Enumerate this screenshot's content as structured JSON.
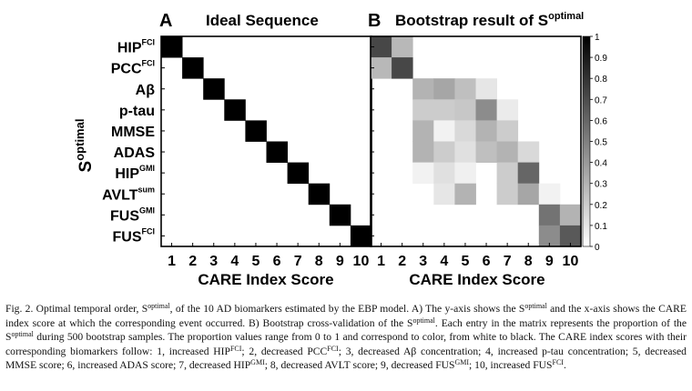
{
  "panels": [
    {
      "letter": "A",
      "title": "Ideal Sequence",
      "xlabel": "CARE Index Score",
      "ylabel_main": "S",
      "ylabel_sup": "optimal"
    },
    {
      "letter": "B",
      "title_main": "Bootstrap result of S",
      "title_sup": "optimal",
      "xlabel": "CARE Index Score"
    }
  ],
  "row_labels": [
    {
      "main": "HIP",
      "sup": "FCI"
    },
    {
      "main": "PCC",
      "sup": "FCI"
    },
    {
      "main": "Aβ",
      "sup": ""
    },
    {
      "main": "p-tau",
      "sup": ""
    },
    {
      "main": "MMSE",
      "sup": ""
    },
    {
      "main": "ADAS",
      "sup": ""
    },
    {
      "main": "HIP",
      "sup": "GMI"
    },
    {
      "main": "AVLT",
      "sup": "sum"
    },
    {
      "main": "FUS",
      "sup": "GMI"
    },
    {
      "main": "FUS",
      "sup": "FCI"
    }
  ],
  "caption": {
    "p1": "Fig. 2. Optimal temporal order, S",
    "s1": "optimal",
    "p2": ", of the 10 AD biomarkers estimated by the EBP model. A) The y-axis shows the S",
    "s2": "optimal",
    "p3": " and the x-axis shows the CARE index score at which the corresponding event occurred. B) Bootstrap cross-validation of the S",
    "s3": "optimal",
    "p4": ". Each entry in the matrix represents the proportion of the S",
    "s4": "optimal",
    "p5": " during 500 bootstrap samples. The proportion values range from 0 to 1 and correspond to color, from white to black. The CARE index scores with their corresponding biomarkers follow: 1, increased HIP",
    "s5": "FCI",
    "p6": "; 2, decreased PCC",
    "s6": "FCI",
    "p7": "; 3, decreased Aβ concentration; 4, increased p-tau concentration; 5, decreased MMSE score; 6, increased ADAS score; 7, decreased HIP",
    "s7": "GMI",
    "p8": "; 8, decreased AVLT score; 9, decreased FUS",
    "s8": "GMI",
    "p9": "; 10, increased FUS",
    "s9": "FCI",
    "p10": "."
  },
  "chart_data": [
    {
      "type": "heatmap",
      "panel": "A",
      "title": "Ideal Sequence",
      "xlabel": "CARE Index Score",
      "ylabel": "Soptimal",
      "x": [
        1,
        2,
        3,
        4,
        5,
        6,
        7,
        8,
        9,
        10
      ],
      "y": [
        "HIP FCI",
        "PCC FCI",
        "Aβ",
        "p-tau",
        "MMSE",
        "ADAS",
        "HIP GMI",
        "AVLT sum",
        "FUS GMI",
        "FUS FCI"
      ],
      "values": [
        [
          1,
          0,
          0,
          0,
          0,
          0,
          0,
          0,
          0,
          0
        ],
        [
          0,
          1,
          0,
          0,
          0,
          0,
          0,
          0,
          0,
          0
        ],
        [
          0,
          0,
          1,
          0,
          0,
          0,
          0,
          0,
          0,
          0
        ],
        [
          0,
          0,
          0,
          1,
          0,
          0,
          0,
          0,
          0,
          0
        ],
        [
          0,
          0,
          0,
          0,
          1,
          0,
          0,
          0,
          0,
          0
        ],
        [
          0,
          0,
          0,
          0,
          0,
          1,
          0,
          0,
          0,
          0
        ],
        [
          0,
          0,
          0,
          0,
          0,
          0,
          1,
          0,
          0,
          0
        ],
        [
          0,
          0,
          0,
          0,
          0,
          0,
          0,
          1,
          0,
          0
        ],
        [
          0,
          0,
          0,
          0,
          0,
          0,
          0,
          0,
          1,
          0
        ],
        [
          0,
          0,
          0,
          0,
          0,
          0,
          0,
          0,
          0,
          1
        ]
      ]
    },
    {
      "type": "heatmap",
      "panel": "B",
      "title": "Bootstrap result of Soptimal",
      "xlabel": "CARE Index Score",
      "x": [
        1,
        2,
        3,
        4,
        5,
        6,
        7,
        8,
        9,
        10
      ],
      "y": [
        "HIP FCI",
        "PCC FCI",
        "Aβ",
        "p-tau",
        "MMSE",
        "ADAS",
        "HIP GMI",
        "AVLT sum",
        "FUS GMI",
        "FUS FCI"
      ],
      "values": [
        [
          0.72,
          0.28,
          0,
          0,
          0,
          0,
          0,
          0,
          0,
          0
        ],
        [
          0.28,
          0.72,
          0,
          0,
          0,
          0,
          0,
          0,
          0,
          0
        ],
        [
          0,
          0,
          0.3,
          0.35,
          0.25,
          0.1,
          0,
          0,
          0,
          0
        ],
        [
          0,
          0,
          0.2,
          0.2,
          0.22,
          0.45,
          0.08,
          0,
          0,
          0
        ],
        [
          0,
          0,
          0.3,
          0.05,
          0.15,
          0.3,
          0.2,
          0,
          0,
          0
        ],
        [
          0,
          0,
          0.3,
          0.2,
          0.12,
          0.25,
          0.3,
          0.15,
          0,
          0
        ],
        [
          0,
          0,
          0.05,
          0.12,
          0.06,
          0,
          0.2,
          0.6,
          0,
          0
        ],
        [
          0,
          0,
          0,
          0.1,
          0.3,
          0,
          0.2,
          0.35,
          0.05,
          0
        ],
        [
          0,
          0,
          0,
          0,
          0,
          0,
          0,
          0,
          0.55,
          0.3
        ],
        [
          0,
          0,
          0,
          0,
          0,
          0,
          0,
          0,
          0.45,
          0.65
        ]
      ],
      "colorbar": {
        "range": [
          0,
          1
        ],
        "ticks": [
          "0",
          "0.1",
          "0.2",
          "0.3",
          "0.4",
          "0.5",
          "0.6",
          "0.7",
          "0.8",
          "0.9",
          "1"
        ],
        "colormap": "white-to-black"
      }
    }
  ]
}
